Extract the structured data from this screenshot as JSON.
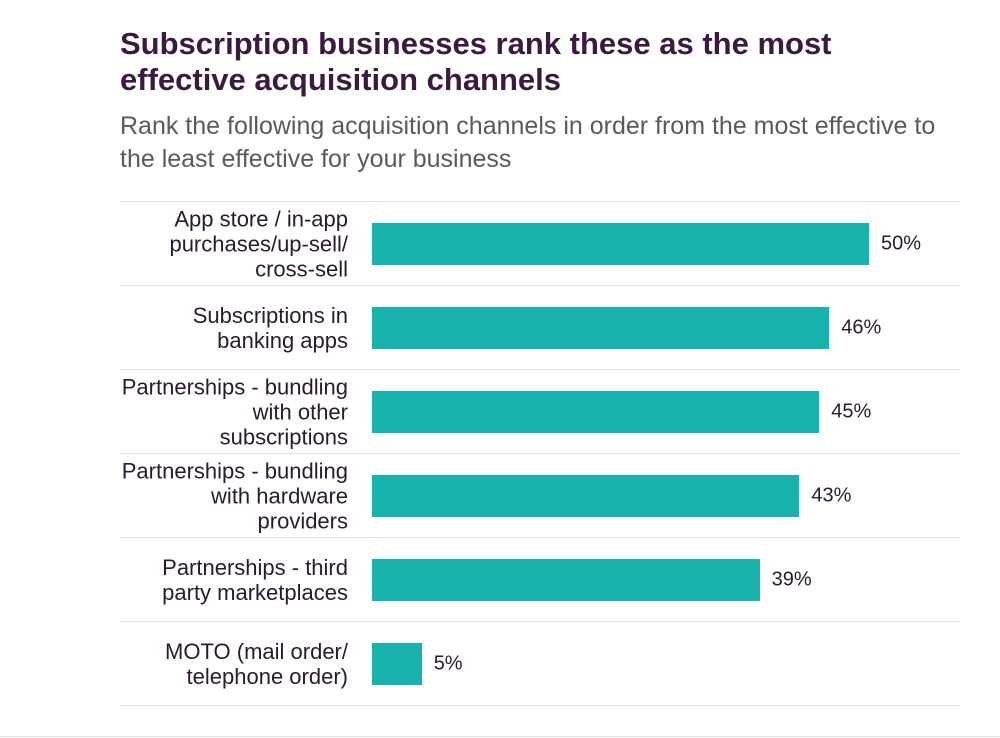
{
  "chart_data": {
    "type": "bar",
    "orientation": "horizontal",
    "title": "Subscription businesses rank these as the most effective acquisition channels",
    "subtitle": "Rank the following acquisition channels in order from the most effective to the least effective for your business",
    "categories": [
      "App store / in-app purchases/up-sell/ cross-sell",
      "Subscriptions in banking apps",
      "Partnerships - bundling with other subscriptions",
      "Partnerships - bundling with hardware providers",
      "Partnerships - third party marketplaces",
      "MOTO (mail order/ telephone order)"
    ],
    "values": [
      50,
      46,
      45,
      43,
      39,
      5
    ],
    "value_labels": [
      "50%",
      "46%",
      "45%",
      "43%",
      "39%",
      "5%"
    ],
    "color": "#19b3ae"
  }
}
